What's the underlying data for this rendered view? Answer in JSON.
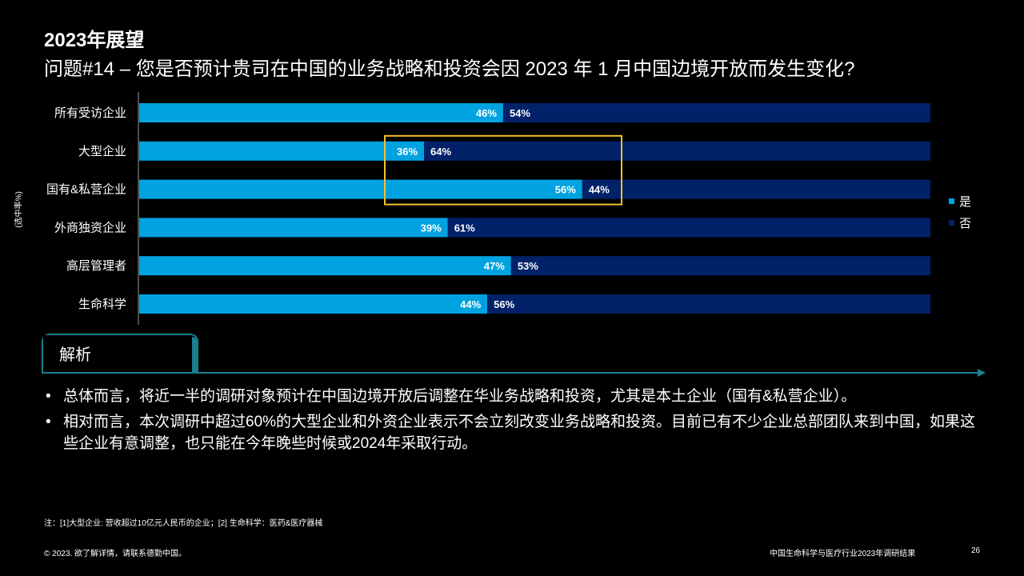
{
  "header": {
    "title": "2023年展望",
    "subtitle": "问题#14 – 您是否预计贵司在中国的业务战略和投资会因 2023 年 1 月中国边境开放而发生变化?"
  },
  "axis_note": "(选中率%)",
  "chart_data": {
    "type": "bar",
    "orientation": "horizontal",
    "stacked": true,
    "categories": [
      "所有受访企业",
      "大型企业",
      "国有&私营企业",
      "外商独资企业",
      "高层管理者",
      "生命科学"
    ],
    "series": [
      {
        "name": "是",
        "values": [
          46,
          36,
          56,
          39,
          47,
          44
        ],
        "labels": [
          "46%",
          "36%",
          "56%",
          "39%",
          "47%",
          "44%"
        ],
        "color": "#00a3e0"
      },
      {
        "name": "否",
        "values": [
          54,
          64,
          44,
          61,
          53,
          56
        ],
        "labels": [
          "54%",
          "64%",
          "44%",
          "61%",
          "53%",
          "56%"
        ],
        "color": "#012169"
      }
    ],
    "xlim": [
      0,
      100
    ],
    "grid": false,
    "legend": "right",
    "highlight_categories": [
      "大型企业",
      "国有&私营企业"
    ],
    "highlight_color": "#f2c12e"
  },
  "section": {
    "label": "解析",
    "accent_color": "#1a7f8f"
  },
  "bullets": [
    "总体而言，将近一半的调研对象预计在中国边境开放后调整在华业务战略和投资，尤其是本土企业（国有&私营企业）。",
    "相对而言，本次调研中超过60%的大型企业和外资企业表示不会立刻改变业务战略和投资。目前已有不少企业总部团队来到中国，如果这些企业有意调整，也只能在今年晚些时候或2024年采取行动。"
  ],
  "bullet_symbol": "•",
  "footnote": "注：[1]大型企业: 营收超过10亿元人民币的企业；[2] 生命科学：医药&医疗器械",
  "footer": {
    "copyright": "© 2023. 欲了解详情，请联系德勤中国。",
    "report": "中国生命科学与医疗行业2023年调研结果",
    "page": "26"
  }
}
